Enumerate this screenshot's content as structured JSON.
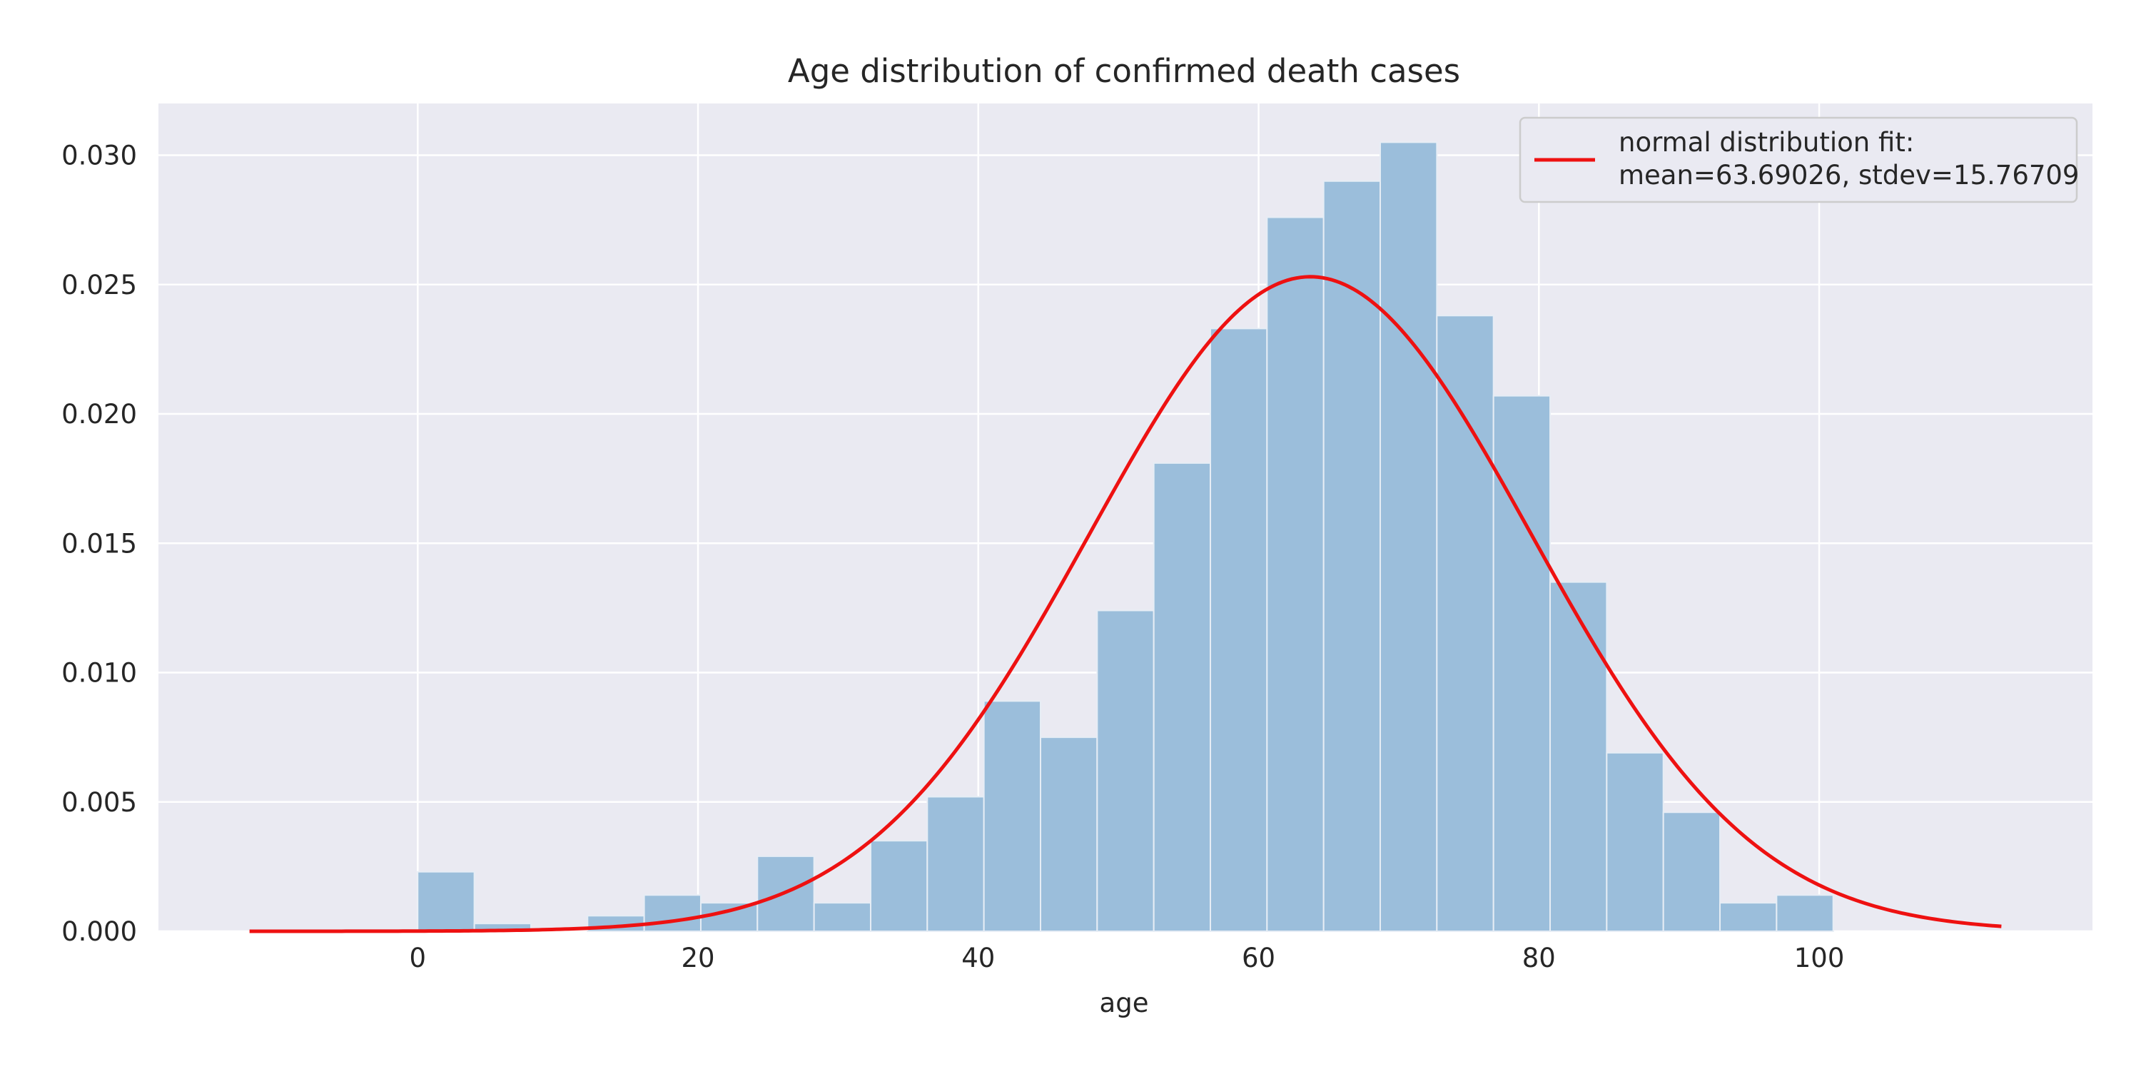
{
  "chart_data": {
    "type": "bar",
    "title": "Age distribution of confirmed death cases",
    "xlabel": "age",
    "ylabel": "",
    "xlim": [
      -18.5,
      119.5
    ],
    "ylim": [
      0,
      0.032
    ],
    "xticks": [
      0,
      20,
      40,
      60,
      80,
      100
    ],
    "xtick_labels": [
      "0",
      "20",
      "40",
      "60",
      "80",
      "100"
    ],
    "yticks": [
      0,
      0.005,
      0.01,
      0.015,
      0.02,
      0.025,
      0.03
    ],
    "ytick_labels": [
      "0.000",
      "0.005",
      "0.010",
      "0.015",
      "0.020",
      "0.025",
      "0.030"
    ],
    "grid": true,
    "legend_position": "top-right",
    "histogram": {
      "bin_start": 0,
      "bin_width": 4.04,
      "values": [
        0.0023,
        0.0003,
        0.0,
        0.0006,
        0.0014,
        0.0011,
        0.0029,
        0.0011,
        0.0035,
        0.0052,
        0.0089,
        0.0075,
        0.0124,
        0.0181,
        0.0233,
        0.0276,
        0.029,
        0.0305,
        0.0238,
        0.0207,
        0.0135,
        0.0069,
        0.0046,
        0.0011,
        0.0014
      ],
      "color": "#9bbedb"
    },
    "fit_curve": {
      "name": "normal distribution fit:\nmean=63.69026, stdev=15.76709",
      "mean": 63.69026,
      "stdev": 15.76709,
      "x_range": [
        -12,
        113
      ],
      "color": "#ee1111"
    },
    "legend": {
      "line1": "normal distribution fit:",
      "line2": "mean=63.69026, stdev=15.76709"
    },
    "colors": {
      "plot_background": "#eaeaf2",
      "grid": "#ffffff",
      "bar_fill": "#9bbedb",
      "curve": "#ee1111"
    }
  }
}
